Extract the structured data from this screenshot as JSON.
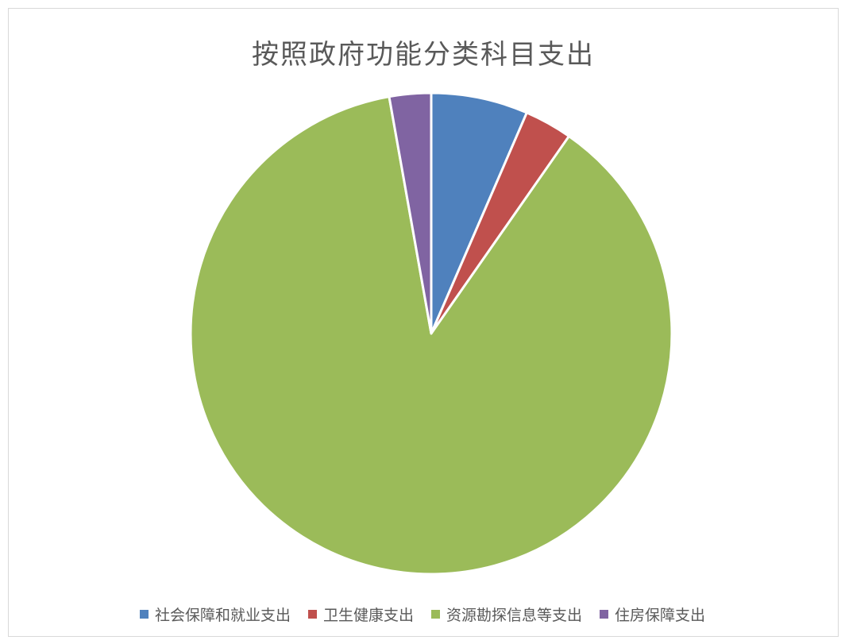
{
  "chart_data": {
    "type": "pie",
    "title": "按照政府功能分类科目支出",
    "legend_position": "bottom",
    "slices": [
      {
        "label": "社会保障和就业支出",
        "value": 6.5,
        "color": "#4F81BD"
      },
      {
        "label": "卫生健康支出",
        "value": 3.2,
        "color": "#C0504D"
      },
      {
        "label": "资源勘探信息等支出",
        "value": 87.5,
        "color": "#9BBB59"
      },
      {
        "label": "住房保障支出",
        "value": 2.8,
        "color": "#8064A2"
      }
    ]
  }
}
